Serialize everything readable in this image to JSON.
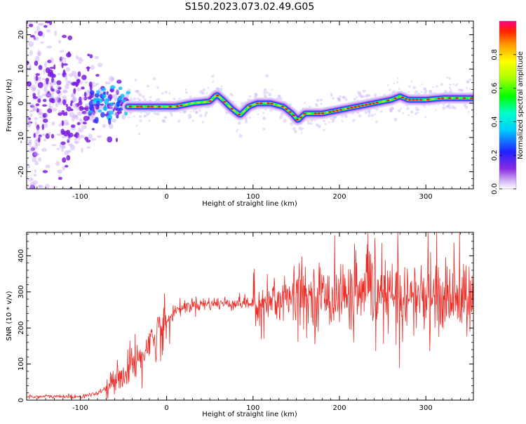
{
  "figure": {
    "title": "S150.2023.073.02.49.G05"
  },
  "chart_data": [
    {
      "type": "heatmap",
      "xlabel": "Height of straight line (km)",
      "ylabel": "Frequency (Hz)",
      "xlim": [
        -162,
        355
      ],
      "ylim": [
        -25,
        24
      ],
      "xticks": [
        -100,
        0,
        100,
        200,
        300
      ],
      "yticks": [
        -20,
        -10,
        0,
        10,
        20
      ],
      "colorbar": {
        "label": "Normalized spectral amplitude",
        "range": [
          0,
          1
        ],
        "ticks": [
          0.0,
          0.2,
          0.4,
          0.6,
          0.8
        ],
        "tick_labels": [
          "0.0",
          "0.2",
          "0.4",
          "0.6",
          "0.8"
        ]
      },
      "ridge": {
        "x": [
          -45,
          -30,
          -10,
          10,
          30,
          50,
          58,
          65,
          75,
          85,
          95,
          105,
          120,
          135,
          145,
          152,
          160,
          180,
          200,
          220,
          240,
          260,
          270,
          280,
          300,
          320,
          355
        ],
        "y": [
          -1,
          -1,
          -1,
          -1,
          0,
          0.5,
          2.5,
          1,
          -1.5,
          -3.5,
          -1,
          0,
          0,
          -1,
          -3,
          -5,
          -3,
          -3,
          -2,
          -1,
          0,
          1,
          2,
          1,
          1,
          1.5,
          1.5
        ]
      },
      "noise_region": {
        "x_range": [
          -162,
          -45
        ],
        "y_range": [
          -25,
          24
        ]
      }
    },
    {
      "type": "line",
      "xlabel": "Height of straight line (km)",
      "ylabel": "SNR (10 * v/v)",
      "xlim": [
        -162,
        355
      ],
      "ylim": [
        0,
        465
      ],
      "xticks": [
        -100,
        0,
        100,
        200,
        300
      ],
      "yticks": [
        0,
        100,
        200,
        300,
        400
      ],
      "series": [
        {
          "color": "#ee2a24",
          "trend_x": [
            -162,
            -100,
            -80,
            -60,
            -40,
            -20,
            -5,
            10,
            30,
            60,
            90,
            100,
            110,
            150,
            200,
            250,
            300,
            355
          ],
          "trend_y": [
            10,
            10,
            18,
            50,
            100,
            160,
            200,
            250,
            265,
            268,
            270,
            268,
            275,
            285,
            290,
            290,
            285,
            285
          ]
        }
      ]
    }
  ]
}
